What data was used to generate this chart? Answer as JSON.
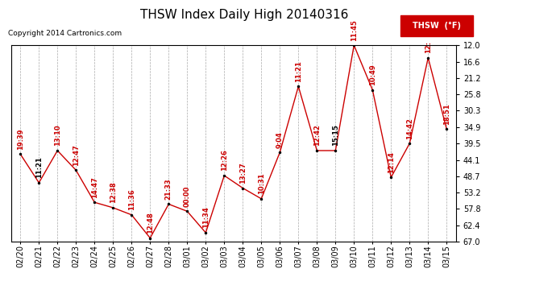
{
  "title": "THSW Index Daily High 20140316",
  "copyright": "Copyright 2014 Cartronics.com",
  "legend_label": "THSW  (°F)",
  "ylabel_right": [
    "67.0",
    "62.4",
    "57.8",
    "53.2",
    "48.7",
    "44.1",
    "39.5",
    "34.9",
    "30.3",
    "25.8",
    "21.2",
    "16.6",
    "12.0"
  ],
  "ylim": [
    12.0,
    67.0
  ],
  "yticks": [
    12.0,
    16.6,
    21.2,
    25.8,
    30.3,
    34.9,
    39.5,
    44.1,
    48.7,
    53.2,
    57.8,
    62.4,
    67.0
  ],
  "dates": [
    "02/20",
    "02/21",
    "02/22",
    "02/23",
    "02/24",
    "02/25",
    "02/26",
    "02/27",
    "02/28",
    "03/01",
    "03/02",
    "03/03",
    "03/04",
    "03/05",
    "03/06",
    "03/07",
    "03/08",
    "03/09",
    "03/10",
    "03/11",
    "03/12",
    "03/13",
    "03/14",
    "03/15"
  ],
  "values": [
    36.5,
    28.5,
    37.5,
    32.0,
    23.0,
    21.5,
    19.5,
    13.0,
    22.5,
    20.5,
    14.5,
    30.5,
    27.0,
    24.0,
    37.0,
    55.5,
    37.5,
    37.5,
    67.0,
    54.5,
    30.0,
    39.5,
    63.5,
    43.5
  ],
  "times": [
    "19:39",
    "11:21",
    "13:10",
    "12:47",
    "14:47",
    "12:38",
    "11:36",
    "12:48",
    "21:33",
    "00:00",
    "11:34",
    "12:26",
    "13:27",
    "10:31",
    "9:04",
    "11:21",
    "12:42",
    "15:15",
    "11:45",
    "10:49",
    "12:14",
    "14:42",
    "12:",
    "18:51"
  ],
  "time_colors": [
    "#cc0000",
    "#000000",
    "#cc0000",
    "#cc0000",
    "#cc0000",
    "#cc0000",
    "#cc0000",
    "#cc0000",
    "#cc0000",
    "#cc0000",
    "#cc0000",
    "#cc0000",
    "#cc0000",
    "#cc0000",
    "#cc0000",
    "#cc0000",
    "#cc0000",
    "#000000",
    "#cc0000",
    "#cc0000",
    "#cc0000",
    "#cc0000",
    "#cc0000",
    "#cc0000"
  ],
  "line_color": "#cc0000",
  "marker_color": "#000000",
  "bg_color": "#ffffff",
  "grid_color": "#aaaaaa",
  "title_fontsize": 11,
  "tick_fontsize": 7,
  "annot_fontsize": 6
}
